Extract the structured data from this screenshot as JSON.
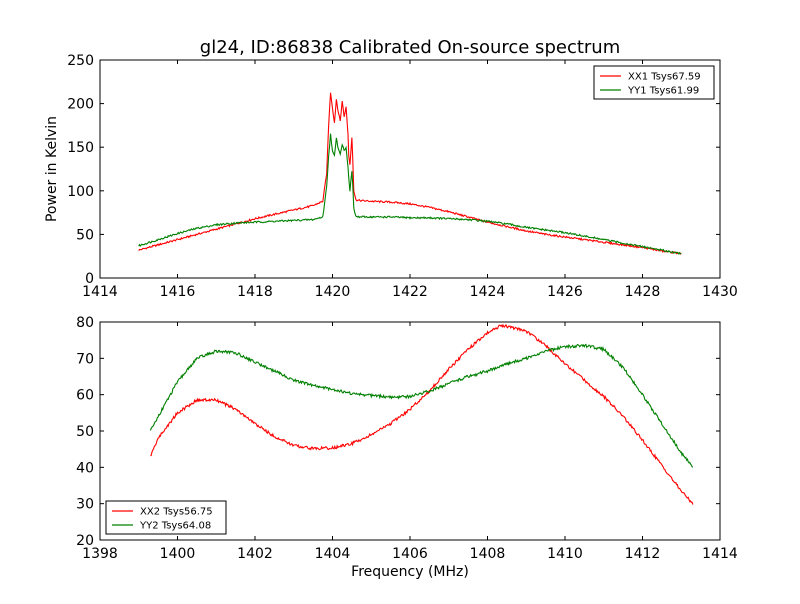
{
  "figure": {
    "title": "gl24, ID:86838 Calibrated On-source spectrum"
  },
  "chart_data": [
    {
      "type": "line",
      "title": "gl24, ID:86838 Calibrated On-source spectrum",
      "xlabel": "",
      "ylabel": "Power in Kelvin",
      "xlim": [
        1414,
        1430
      ],
      "ylim": [
        0,
        250
      ],
      "xticks": [
        1414,
        1416,
        1418,
        1420,
        1422,
        1424,
        1426,
        1428,
        1430
      ],
      "yticks": [
        0,
        50,
        100,
        150,
        200,
        250
      ],
      "grid": false,
      "legend": "top-right",
      "series": [
        {
          "name": "XX1 Tsys67.59",
          "color": "#ff0000",
          "x": [
            1415.0,
            1415.5,
            1416.0,
            1416.5,
            1417.0,
            1417.5,
            1418.0,
            1418.5,
            1419.0,
            1419.5,
            1419.75,
            1419.85,
            1419.9,
            1419.95,
            1420.0,
            1420.05,
            1420.1,
            1420.15,
            1420.2,
            1420.25,
            1420.3,
            1420.35,
            1420.4,
            1420.42,
            1420.45,
            1420.5,
            1420.52,
            1420.55,
            1420.6,
            1420.65,
            1421.0,
            1421.5,
            1422.0,
            1422.5,
            1423.0,
            1423.5,
            1424.0,
            1424.5,
            1425.0,
            1425.5,
            1426.0,
            1426.5,
            1427.0,
            1427.5,
            1428.0,
            1428.5,
            1429.0
          ],
          "y": [
            32,
            38,
            44,
            50,
            56,
            62,
            68,
            73,
            78,
            83,
            88,
            120,
            175,
            213,
            195,
            178,
            205,
            190,
            180,
            203,
            185,
            196,
            165,
            140,
            130,
            162,
            140,
            100,
            90,
            89,
            88,
            87,
            85,
            81,
            76,
            70,
            64,
            59,
            54,
            50,
            47,
            44,
            41,
            38,
            35,
            31,
            28
          ]
        },
        {
          "name": "YY1 Tsys61.99",
          "color": "#008000",
          "x": [
            1415.0,
            1415.5,
            1416.0,
            1416.5,
            1417.0,
            1417.5,
            1418.0,
            1418.5,
            1419.0,
            1419.5,
            1419.75,
            1419.85,
            1419.9,
            1419.95,
            1420.0,
            1420.05,
            1420.1,
            1420.15,
            1420.2,
            1420.25,
            1420.3,
            1420.35,
            1420.4,
            1420.42,
            1420.45,
            1420.5,
            1420.52,
            1420.55,
            1420.6,
            1420.65,
            1421.0,
            1421.5,
            1422.0,
            1422.5,
            1423.0,
            1423.5,
            1424.0,
            1424.5,
            1425.0,
            1425.5,
            1426.0,
            1426.5,
            1427.0,
            1427.5,
            1428.0,
            1428.5,
            1429.0
          ],
          "y": [
            37,
            44,
            51,
            57,
            61,
            63,
            64,
            65,
            66,
            67,
            70,
            105,
            140,
            165,
            145,
            140,
            160,
            148,
            143,
            153,
            147,
            149,
            128,
            115,
            100,
            123,
            108,
            80,
            71,
            70,
            70,
            70,
            69,
            69,
            68,
            67,
            65,
            62,
            58,
            55,
            52,
            48,
            44,
            40,
            36,
            32,
            28
          ]
        }
      ]
    },
    {
      "type": "line",
      "title": "",
      "xlabel": "Frequency (MHz)",
      "ylabel": "",
      "xlim": [
        1398,
        1414
      ],
      "ylim": [
        20,
        80
      ],
      "xticks": [
        1398,
        1400,
        1402,
        1404,
        1406,
        1408,
        1410,
        1412,
        1414
      ],
      "yticks": [
        20,
        30,
        40,
        50,
        60,
        70,
        80
      ],
      "grid": false,
      "legend": "bottom-left",
      "series": [
        {
          "name": "XX2 Tsys56.75",
          "color": "#ff0000",
          "x": [
            1399.3,
            1399.5,
            1400.0,
            1400.5,
            1401.0,
            1401.5,
            1402.0,
            1402.5,
            1403.0,
            1403.5,
            1404.0,
            1404.5,
            1405.0,
            1405.5,
            1406.0,
            1406.5,
            1407.0,
            1407.5,
            1408.0,
            1408.3,
            1408.5,
            1409.0,
            1409.5,
            1410.0,
            1410.5,
            1411.0,
            1411.5,
            1412.0,
            1412.5,
            1413.0,
            1413.3
          ],
          "y": [
            43,
            48,
            55,
            58.5,
            58.5,
            56,
            52,
            48.5,
            46,
            45.2,
            45.3,
            46.5,
            49,
            52,
            56,
            61,
            67,
            72.5,
            77,
            78.8,
            78.8,
            77.5,
            73.5,
            68.5,
            64,
            59.5,
            54,
            47.5,
            40.5,
            33.5,
            30
          ]
        },
        {
          "name": "YY2 Tsys64.08",
          "color": "#008000",
          "x": [
            1399.3,
            1399.5,
            1400.0,
            1400.5,
            1401.0,
            1401.5,
            1402.0,
            1402.5,
            1403.0,
            1403.5,
            1404.0,
            1404.5,
            1405.0,
            1405.5,
            1406.0,
            1406.5,
            1407.0,
            1407.5,
            1408.0,
            1408.5,
            1409.0,
            1409.5,
            1410.0,
            1410.5,
            1411.0,
            1411.5,
            1412.0,
            1412.5,
            1413.0,
            1413.3
          ],
          "y": [
            50,
            54,
            63.5,
            70,
            72,
            71.5,
            69,
            66.5,
            64,
            62.5,
            61.5,
            60.3,
            59.8,
            59.3,
            59.5,
            61,
            63,
            65,
            66.5,
            68.5,
            70,
            72,
            73.2,
            73.5,
            72.5,
            67.5,
            60,
            52,
            44,
            40
          ]
        }
      ]
    }
  ]
}
